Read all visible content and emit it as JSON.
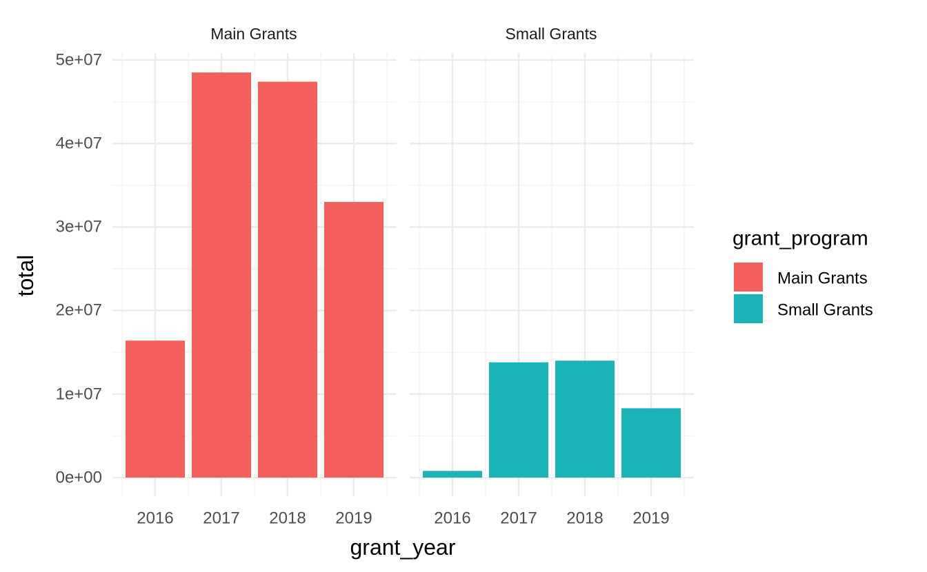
{
  "chart_data": {
    "type": "bar",
    "facet_by": "grant_program",
    "xlabel": "grant_year",
    "ylabel": "total",
    "ylim": [
      0,
      50000000
    ],
    "y_ticks": [
      0,
      10000000,
      20000000,
      30000000,
      40000000,
      50000000
    ],
    "y_tick_labels": [
      "0e+00",
      "1e+07",
      "2e+07",
      "3e+07",
      "4e+07",
      "5e+07"
    ],
    "categories": [
      "2016",
      "2017",
      "2018",
      "2019"
    ],
    "panels": [
      {
        "strip_label": "Main Grants",
        "series": "Main Grants",
        "values": [
          16400000,
          48500000,
          47400000,
          33000000
        ]
      },
      {
        "strip_label": "Small Grants",
        "series": "Small Grants",
        "values": [
          800000,
          13800000,
          14000000,
          8300000
        ]
      }
    ],
    "legend": {
      "title": "grant_program",
      "position": "right",
      "entries": [
        {
          "label": "Main Grants",
          "color": "#F8766D"
        },
        {
          "label": "Small Grants",
          "color": "#00BFC4"
        }
      ]
    },
    "grid": true,
    "theme": "minimal"
  },
  "colors": {
    "main": "#F35F5A",
    "small": "#1AB4B8",
    "grid_major": "#EBEBEB",
    "grid_minor": "#F4F4F4"
  }
}
